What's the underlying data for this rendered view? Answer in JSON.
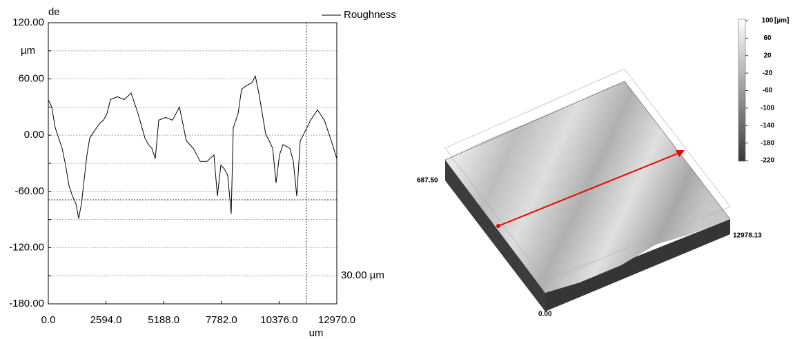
{
  "chart_data": {
    "type": "line",
    "y_label": "de",
    "y_unit": "µm",
    "x_label": "um",
    "annotation": "30.00 µm",
    "xlim": [
      0,
      12970
    ],
    "xticks": [
      {
        "value": 0,
        "label": "0.0"
      },
      {
        "value": 2594,
        "label": "2594.0"
      },
      {
        "value": 5188,
        "label": "5188.0"
      },
      {
        "value": 7782,
        "label": "7782.0"
      },
      {
        "value": 10376,
        "label": "10376.0"
      },
      {
        "value": 12970,
        "label": "12970.0"
      }
    ],
    "ylim": [
      -180,
      120
    ],
    "yticks": [
      {
        "value": 120,
        "label": "120.00"
      },
      {
        "value": 60,
        "label": "60.00"
      },
      {
        "value": 0,
        "label": "0.00"
      },
      {
        "value": -60,
        "label": "-60.00"
      },
      {
        "value": -120,
        "label": "-120.00"
      },
      {
        "value": -180,
        "label": "-180.00"
      }
    ],
    "minor_yticks": [
      90,
      30,
      -30,
      -90,
      -150
    ],
    "grid": true,
    "marker_x": 11605,
    "marker_y": -69,
    "x": [
      0,
      155,
      310,
      466,
      620,
      776,
      931,
      1086,
      1241,
      1365,
      1490,
      1614,
      1738,
      1862,
      2172,
      2327,
      2482,
      2638,
      2793,
      3103,
      3413,
      3724,
      4034,
      4344,
      4500,
      4655,
      4810,
      4965,
      5275,
      5585,
      5896,
      6206,
      6516,
      6827,
      7137,
      7447,
      7602,
      7757,
      7913,
      8068,
      8223,
      8316,
      8533,
      8689,
      8844,
      9154,
      9309,
      9465,
      9620,
      9775,
      9930,
      10086,
      10240,
      10396,
      10551,
      10861,
      11016,
      11171,
      11327,
      11482,
      11792,
      12102,
      12413,
      12723,
      12970
    ],
    "series": [
      {
        "name": "Roughness",
        "color": "#000000",
        "values": [
          37.7,
          30,
          8,
          -3,
          -14,
          -32,
          -54,
          -65,
          -73,
          -89,
          -73,
          -47,
          -21,
          -3,
          8,
          13,
          16,
          23,
          38,
          41,
          38,
          45,
          23,
          -3,
          -10,
          -14,
          -25,
          16,
          19,
          16,
          30,
          -6,
          -14,
          -28,
          -28,
          -21,
          -65,
          -32,
          -36,
          -43,
          -84,
          8,
          23,
          49,
          52,
          56,
          63,
          45,
          23,
          1,
          -6,
          -14,
          -51,
          -21,
          -10,
          -14,
          -28,
          -65,
          -6,
          1,
          16,
          27,
          16,
          -6,
          -25
        ]
      }
    ]
  },
  "surface": {
    "unit": "[µm]",
    "colorbar_ticks": [
      100,
      60,
      20,
      -20,
      -60,
      -100,
      -140,
      -180,
      -220
    ],
    "y_extent": "687.50",
    "x_extent": "12978.13",
    "origin": "0.00"
  }
}
